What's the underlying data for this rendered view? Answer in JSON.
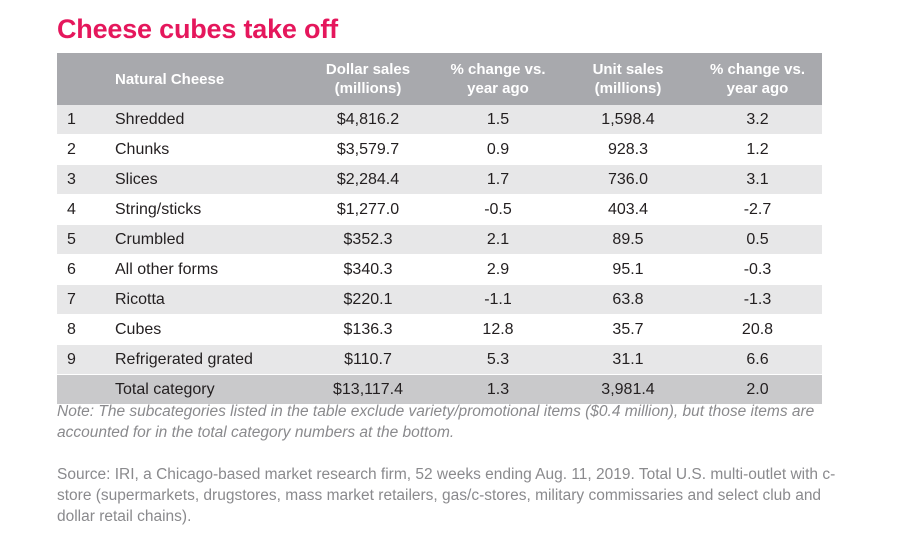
{
  "title": "Cheese cubes take off",
  "chart_data": {
    "type": "table",
    "title": "Cheese cubes take off",
    "columns": [
      "",
      "Natural Cheese",
      "Dollar sales\n(millions)",
      "% change vs.\nyear ago",
      "Unit sales\n(millions)",
      "% change vs.\nyear ago"
    ],
    "rows": [
      [
        "1",
        "Shredded",
        "$4,816.2",
        "1.5",
        "1,598.4",
        "3.2"
      ],
      [
        "2",
        "Chunks",
        "$3,579.7",
        "0.9",
        "928.3",
        "1.2"
      ],
      [
        "3",
        "Slices",
        "$2,284.4",
        "1.7",
        "736.0",
        "3.1"
      ],
      [
        "4",
        "String/sticks",
        "$1,277.0",
        "-0.5",
        "403.4",
        "-2.7"
      ],
      [
        "5",
        "Crumbled",
        "$352.3",
        "2.1",
        "89.5",
        "0.5"
      ],
      [
        "6",
        "All other forms",
        "$340.3",
        "2.9",
        "95.1",
        "-0.3"
      ],
      [
        "7",
        "Ricotta",
        "$220.1",
        "-1.1",
        "63.8",
        "-1.3"
      ],
      [
        "8",
        "Cubes",
        "$136.3",
        "12.8",
        "35.7",
        "20.8"
      ],
      [
        "9",
        "Refrigerated grated",
        "$110.7",
        "5.3",
        "31.1",
        "6.6"
      ]
    ],
    "total": [
      "",
      "Total category",
      "$13,117.4",
      "1.3",
      "3,981.4",
      "2.0"
    ]
  },
  "note": "Note: The subcategories listed in the table exclude variety/promotional items ($0.4 million), but those items are accounted for in the total category numbers at the bottom.",
  "source": "Source: IRI, a Chicago-based market research firm, 52 weeks ending Aug. 11, 2019. Total U.S. multi-outlet with c-store (supermarkets, drugstores, mass market retailers, gas/c-stores, military commissaries and select club and dollar retail chains).",
  "colors": {
    "title": "#e5175c",
    "header_bg": "#a8a9ad",
    "row_shade": "#e7e7e8",
    "total_bg": "#c9c9cb",
    "note_text": "#8a8a8d"
  }
}
